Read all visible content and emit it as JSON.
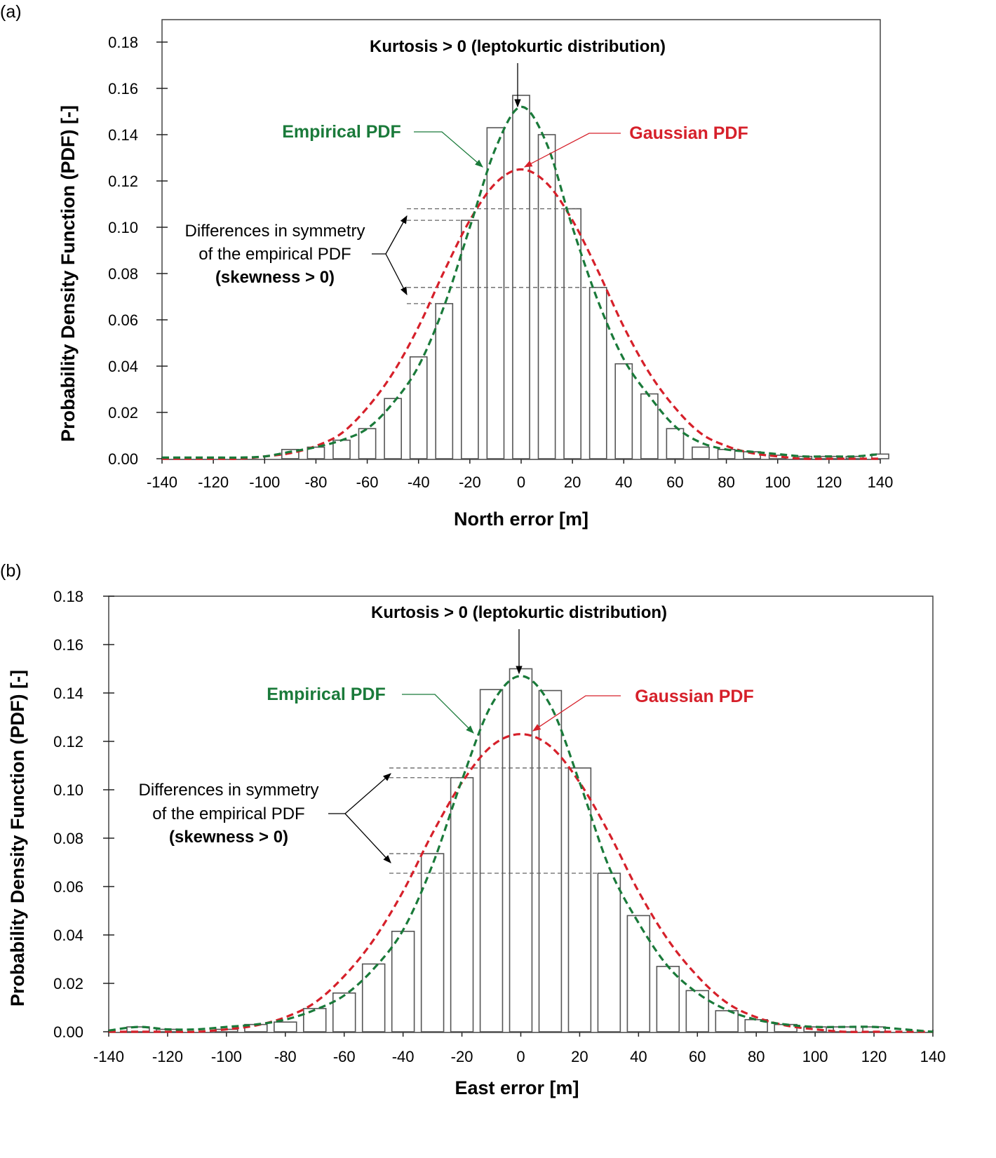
{
  "chart_data": [
    {
      "type": "bar",
      "panel_label": "(a)",
      "xlabel": "North error [m]",
      "ylabel": "Probability Density Function (PDF) [-]",
      "xlim": [
        -140,
        140
      ],
      "ylim": [
        0,
        0.18
      ],
      "xticks": [
        "-140",
        "-120",
        "-100",
        "-80",
        "-60",
        "-40",
        "-20",
        "0",
        "20",
        "40",
        "60",
        "80",
        "100",
        "120",
        "140"
      ],
      "yticks": [
        "0.00",
        "0.02",
        "0.04",
        "0.06",
        "0.08",
        "0.10",
        "0.12",
        "0.14",
        "0.16",
        "0.18"
      ],
      "bars": {
        "x": [
          -90,
          -80,
          -70,
          -60,
          -50,
          -40,
          -30,
          -20,
          -10,
          0,
          10,
          20,
          30,
          40,
          50,
          60,
          70,
          80,
          90,
          100,
          110,
          120,
          130,
          140
        ],
        "values": [
          0.004,
          0.005,
          0.008,
          0.013,
          0.026,
          0.044,
          0.067,
          0.103,
          0.143,
          0.157,
          0.14,
          0.108,
          0.074,
          0.041,
          0.028,
          0.013,
          0.005,
          0.004,
          0.003,
          0.0015,
          0.001,
          0.001,
          0.001,
          0.002
        ]
      },
      "series": [
        {
          "name": "Empirical PDF",
          "color": "#1a7a3a",
          "x": [
            -140,
            -130,
            -120,
            -110,
            -100,
            -90,
            -80,
            -70,
            -60,
            -50,
            -40,
            -30,
            -20,
            -10,
            0,
            10,
            20,
            30,
            40,
            50,
            60,
            70,
            80,
            90,
            100,
            110,
            120,
            130,
            140
          ],
          "values": [
            0.0005,
            0.0005,
            0.0005,
            0.0005,
            0.001,
            0.003,
            0.005,
            0.008,
            0.013,
            0.024,
            0.04,
            0.066,
            0.1,
            0.134,
            0.152,
            0.136,
            0.1,
            0.068,
            0.043,
            0.027,
            0.014,
            0.007,
            0.004,
            0.003,
            0.002,
            0.001,
            0.001,
            0.001,
            0.002
          ]
        },
        {
          "name": "Gaussian PDF",
          "color": "#d6202a",
          "x": [
            -140,
            -130,
            -120,
            -110,
            -100,
            -90,
            -80,
            -70,
            -60,
            -50,
            -40,
            -30,
            -20,
            -10,
            0,
            10,
            20,
            30,
            40,
            50,
            60,
            70,
            80,
            90,
            100,
            110,
            120,
            130,
            140
          ],
          "values": [
            0,
            0,
            0,
            0,
            0.001,
            0.0024,
            0.0055,
            0.011,
            0.022,
            0.037,
            0.057,
            0.081,
            0.103,
            0.119,
            0.125,
            0.119,
            0.103,
            0.081,
            0.057,
            0.037,
            0.022,
            0.011,
            0.0055,
            0.0024,
            0.001,
            0,
            0,
            0,
            0
          ]
        }
      ],
      "reference_lines": [
        0.108,
        0.103,
        0.074,
        0.067
      ],
      "annotations": {
        "kurtosis": "Kurtosis > 0 (leptokurtic distribution)",
        "empirical_label": "Empirical PDF",
        "gaussian_label": "Gaussian PDF",
        "symmetry_line1": "Differences in symmetry",
        "symmetry_line2": "of the empirical PDF",
        "symmetry_line3": "(skewness > 0)"
      }
    },
    {
      "type": "bar",
      "panel_label": "(b)",
      "xlabel": "East error [m]",
      "ylabel": "Probability Density Function (PDF) [-]",
      "xlim": [
        -140,
        140
      ],
      "ylim": [
        0,
        0.18
      ],
      "xticks": [
        "-140",
        "-120",
        "-100",
        "-80",
        "-60",
        "-40",
        "-20",
        "0",
        "20",
        "40",
        "60",
        "80",
        "100",
        "120",
        "140"
      ],
      "yticks": [
        "0.00",
        "0.02",
        "0.04",
        "0.06",
        "0.08",
        "0.10",
        "0.12",
        "0.14",
        "0.16",
        "0.18"
      ],
      "bars": {
        "x": [
          -130,
          -120,
          -100,
          -90,
          -80,
          -70,
          -60,
          -50,
          -40,
          -30,
          -20,
          -10,
          0,
          10,
          20,
          30,
          40,
          50,
          60,
          70,
          80,
          90,
          100,
          110,
          120
        ],
        "values": [
          0.002,
          0.001,
          0.001,
          0.003,
          0.004,
          0.0096,
          0.016,
          0.028,
          0.0415,
          0.0736,
          0.105,
          0.1414,
          0.15,
          0.141,
          0.109,
          0.0655,
          0.048,
          0.027,
          0.017,
          0.0087,
          0.005,
          0.003,
          0.002,
          0.002,
          0.002
        ]
      },
      "series": [
        {
          "name": "Empirical PDF",
          "color": "#1a7a3a",
          "x": [
            -140,
            -130,
            -120,
            -110,
            -100,
            -90,
            -80,
            -70,
            -60,
            -50,
            -40,
            -30,
            -20,
            -10,
            0,
            10,
            20,
            30,
            40,
            50,
            60,
            70,
            80,
            90,
            100,
            110,
            120,
            130,
            140
          ],
          "values": [
            0.0005,
            0.002,
            0.001,
            0.001,
            0.002,
            0.003,
            0.005,
            0.009,
            0.015,
            0.026,
            0.042,
            0.069,
            0.104,
            0.135,
            0.147,
            0.135,
            0.103,
            0.068,
            0.045,
            0.027,
            0.016,
            0.009,
            0.005,
            0.003,
            0.002,
            0.002,
            0.002,
            0.001,
            0
          ]
        },
        {
          "name": "Gaussian PDF",
          "color": "#d6202a",
          "x": [
            -140,
            -130,
            -120,
            -110,
            -100,
            -90,
            -80,
            -70,
            -60,
            -50,
            -40,
            -30,
            -20,
            -10,
            0,
            10,
            20,
            30,
            40,
            50,
            60,
            70,
            80,
            90,
            100,
            110,
            120,
            130,
            140
          ],
          "values": [
            0,
            0,
            0,
            0,
            0.001,
            0.0026,
            0.006,
            0.012,
            0.023,
            0.038,
            0.058,
            0.082,
            0.103,
            0.118,
            0.123,
            0.118,
            0.103,
            0.082,
            0.058,
            0.038,
            0.023,
            0.012,
            0.006,
            0.0026,
            0.001,
            0,
            0,
            0,
            0
          ]
        }
      ],
      "reference_lines": [
        0.109,
        0.105,
        0.0736,
        0.0655
      ],
      "annotations": {
        "kurtosis": "Kurtosis > 0 (leptokurtic distribution)",
        "empirical_label": "Empirical PDF",
        "gaussian_label": "Gaussian PDF",
        "symmetry_line1": "Differences in symmetry",
        "symmetry_line2": "of the empirical PDF",
        "symmetry_line3": "(skewness > 0)"
      }
    }
  ]
}
